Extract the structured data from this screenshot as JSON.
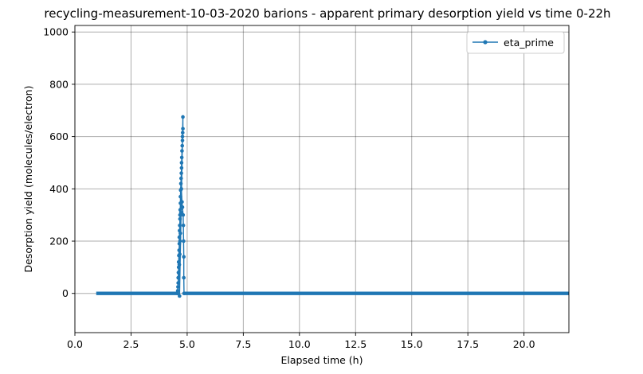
{
  "chart_data": {
    "type": "line",
    "title": "recycling-measurement-10-03-2020 barions - apparent primary desorption yield vs time 0-22h",
    "xlabel": "Elapsed time (h)",
    "ylabel": "Desorption yield (molecules/electron)",
    "xlim": [
      0,
      22
    ],
    "ylim": [
      -150,
      1025
    ],
    "xticks": [
      0,
      2.5,
      5,
      7.5,
      10,
      12.5,
      15,
      17.5,
      20
    ],
    "xtick_labels": [
      "0.0",
      "2.5",
      "5.0",
      "7.5",
      "10.0",
      "12.5",
      "15.0",
      "17.5",
      "20.0"
    ],
    "yticks": [
      0,
      200,
      400,
      600,
      800,
      1000
    ],
    "ytick_labels": [
      "0",
      "200",
      "400",
      "600",
      "800",
      "1000"
    ],
    "grid": true,
    "legend": "top-right",
    "series": [
      {
        "name": "eta_prime",
        "color": "#1f77b4",
        "marker": "dot",
        "segments": [
          {
            "x_start": 0.95,
            "x_end": 4.57,
            "y": 0
          },
          {
            "x_start": 4.86,
            "x_end": 22.0,
            "y": 0
          }
        ],
        "points": [
          [
            4.57,
            0
          ],
          [
            4.58,
            10
          ],
          [
            4.59,
            25
          ],
          [
            4.6,
            40
          ],
          [
            4.6,
            60
          ],
          [
            4.61,
            80
          ],
          [
            4.62,
            100
          ],
          [
            4.62,
            120
          ],
          [
            4.63,
            145
          ],
          [
            4.64,
            165
          ],
          [
            4.65,
            190
          ],
          [
            4.65,
            215
          ],
          [
            4.66,
            240
          ],
          [
            4.67,
            260
          ],
          [
            4.68,
            285
          ],
          [
            4.68,
            300
          ],
          [
            4.69,
            320
          ],
          [
            4.7,
            345
          ],
          [
            4.7,
            370
          ],
          [
            4.71,
            395
          ],
          [
            4.72,
            420
          ],
          [
            4.73,
            440
          ],
          [
            4.74,
            460
          ],
          [
            4.75,
            480
          ],
          [
            4.75,
            500
          ],
          [
            4.76,
            520
          ],
          [
            4.77,
            545
          ],
          [
            4.78,
            565
          ],
          [
            4.79,
            585
          ],
          [
            4.79,
            600
          ],
          [
            4.8,
            615
          ],
          [
            4.81,
            630
          ],
          [
            4.81,
            675
          ],
          [
            4.66,
            -10
          ],
          [
            4.65,
            110
          ],
          [
            4.67,
            150
          ],
          [
            4.68,
            200
          ],
          [
            4.7,
            230
          ],
          [
            4.72,
            310
          ],
          [
            4.74,
            400
          ],
          [
            4.77,
            350
          ],
          [
            4.79,
            330
          ],
          [
            4.82,
            300
          ],
          [
            4.83,
            260
          ],
          [
            4.84,
            200
          ],
          [
            4.85,
            140
          ],
          [
            4.85,
            60
          ],
          [
            4.86,
            0
          ]
        ]
      }
    ]
  }
}
